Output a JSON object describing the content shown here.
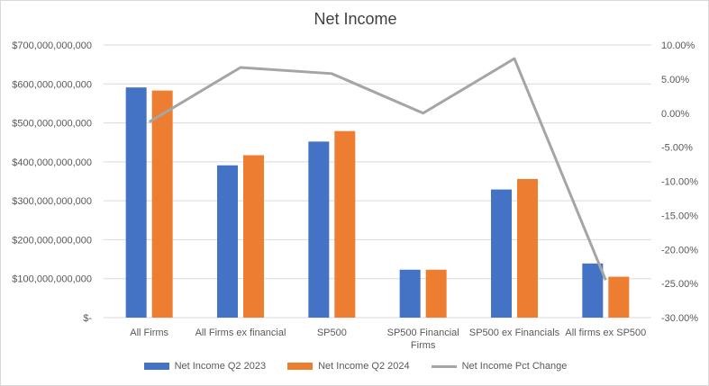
{
  "chart_data": {
    "type": "bar",
    "title": "Net Income",
    "categories": [
      "All Firms",
      "All Firms ex financial",
      "SP500",
      "SP500 Financial Firms",
      "SP500 ex Financials",
      "All firms ex SP500"
    ],
    "series": [
      {
        "name": "Net Income Q2 2023",
        "type": "bar",
        "axis": "left",
        "color": "#4472c4",
        "values": [
          591000000000,
          391000000000,
          452000000000,
          123000000000,
          329000000000,
          139000000000
        ]
      },
      {
        "name": "Net Income Q2 2024",
        "type": "bar",
        "axis": "left",
        "color": "#ed7d31",
        "values": [
          583000000000,
          417000000000,
          479000000000,
          123000000000,
          356000000000,
          105000000000
        ]
      },
      {
        "name": "Net Income Pct Change",
        "type": "line",
        "axis": "right",
        "color": "#a5a5a5",
        "values": [
          -1.3,
          6.7,
          5.8,
          0.0,
          8.0,
          -24.5
        ]
      }
    ],
    "ylim_left": [
      0,
      700000000000
    ],
    "ylim_right": [
      -30,
      10
    ],
    "yticks_left": [
      "$-",
      "$100,000,000,000",
      "$200,000,000,000",
      "$300,000,000,000",
      "$400,000,000,000",
      "$500,000,000,000",
      "$600,000,000,000",
      "$700,000,000,000"
    ],
    "yticks_right": [
      "-30.00%",
      "-25.00%",
      "-20.00%",
      "-15.00%",
      "-10.00%",
      "-5.00%",
      "0.00%",
      "5.00%",
      "10.00%"
    ],
    "grid": true,
    "legend_position": "bottom"
  }
}
